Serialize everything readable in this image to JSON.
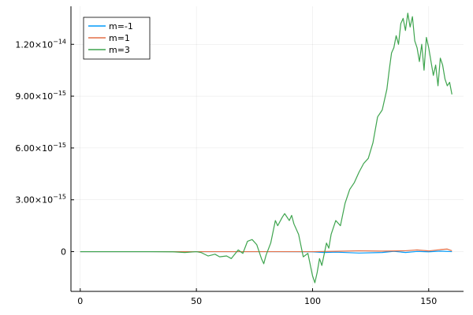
{
  "chart_data": {
    "type": "line",
    "title": "",
    "xlabel": "",
    "ylabel": "",
    "xlim": [
      -4,
      165
    ],
    "ylim": [
      -2.3e-15,
      1.42e-14
    ],
    "grid": true,
    "legend_placement": "top-left",
    "x_ticks": [
      0,
      50,
      100,
      150
    ],
    "x_tick_labels": [
      "0",
      "50",
      "100",
      "150"
    ],
    "y_ticks": [
      0,
      3e-15,
      6e-15,
      9e-15,
      1.2e-14
    ],
    "y_tick_labels": [
      {
        "mantissa": "0",
        "exp": ""
      },
      {
        "mantissa": "3.00×10",
        "exp": "−15"
      },
      {
        "mantissa": "6.00×10",
        "exp": "−15"
      },
      {
        "mantissa": "9.00×10",
        "exp": "−15"
      },
      {
        "mantissa": "1.20×10",
        "exp": "−14"
      }
    ],
    "series": [
      {
        "name": "m=-1",
        "color": "#009AFA",
        "x": [
          0,
          20,
          40,
          60,
          80,
          100,
          105,
          110,
          120,
          130,
          135,
          140,
          145,
          150,
          155,
          160
        ],
        "y": [
          0,
          0,
          0,
          0,
          0,
          -1e-17,
          -5e-17,
          -3e-17,
          -8e-17,
          -5e-17,
          2e-17,
          -5e-17,
          1e-17,
          -1e-17,
          3e-17,
          0
        ]
      },
      {
        "name": "m=1",
        "color": "#E36F47",
        "x": [
          0,
          20,
          40,
          60,
          80,
          100,
          110,
          120,
          130,
          140,
          145,
          150,
          155,
          158,
          160
        ],
        "y": [
          0,
          0,
          0,
          0,
          0,
          0,
          2e-17,
          5e-17,
          3e-17,
          5e-17,
          1e-16,
          4e-17,
          1.2e-16,
          1.5e-16,
          5e-17
        ]
      },
      {
        "name": "m=3",
        "color": "#3EA44E",
        "x": [
          0,
          10,
          20,
          30,
          40,
          45,
          50,
          52,
          55,
          58,
          60,
          63,
          65,
          68,
          70,
          72,
          74,
          76,
          78,
          79,
          80,
          82,
          84,
          85,
          87,
          88,
          90,
          91,
          92,
          94,
          96,
          98,
          100,
          101,
          102,
          103,
          104,
          106,
          107,
          108,
          110,
          112,
          114,
          116,
          118,
          120,
          122,
          124,
          126,
          128,
          130,
          131,
          132,
          133,
          134,
          135,
          136,
          137,
          138,
          139,
          140,
          141,
          142,
          143,
          144,
          145,
          146,
          147,
          148,
          149,
          150,
          151,
          152,
          153,
          154,
          155,
          156,
          157,
          158,
          159,
          160
        ],
        "y": [
          0,
          0,
          0,
          0,
          -1e-17,
          -5e-17,
          0,
          -5e-17,
          -2.5e-16,
          -1.5e-16,
          -3e-16,
          -2.5e-16,
          -4e-16,
          1e-16,
          -1e-16,
          6e-16,
          7e-16,
          4e-16,
          -4e-16,
          -7e-16,
          -2e-16,
          5e-16,
          1.8e-15,
          1.5e-15,
          2e-15,
          2.2e-15,
          1.8e-15,
          2.1e-15,
          1.6e-15,
          1e-15,
          -3e-16,
          -1e-16,
          -1.4e-15,
          -1.8e-15,
          -1.2e-15,
          -4e-16,
          -8e-16,
          5e-16,
          2e-16,
          1e-15,
          1.8e-15,
          1.5e-15,
          2.8e-15,
          3.6e-15,
          4e-15,
          4.6e-15,
          5.1e-15,
          5.4e-15,
          6.3e-15,
          7.8e-15,
          8.2e-15,
          8.8e-15,
          9.4e-15,
          1.05e-14,
          1.15e-14,
          1.18e-14,
          1.25e-14,
          1.2e-14,
          1.32e-14,
          1.35e-14,
          1.28e-14,
          1.38e-14,
          1.3e-14,
          1.36e-14,
          1.22e-14,
          1.18e-14,
          1.1e-14,
          1.2e-14,
          1.05e-14,
          1.24e-14,
          1.18e-14,
          1.1e-14,
          1.02e-14,
          1.08e-14,
          9.6e-15,
          1.12e-14,
          1.08e-14,
          1e-14,
          9.6e-15,
          9.8e-15,
          9.1e-15
        ]
      }
    ]
  }
}
